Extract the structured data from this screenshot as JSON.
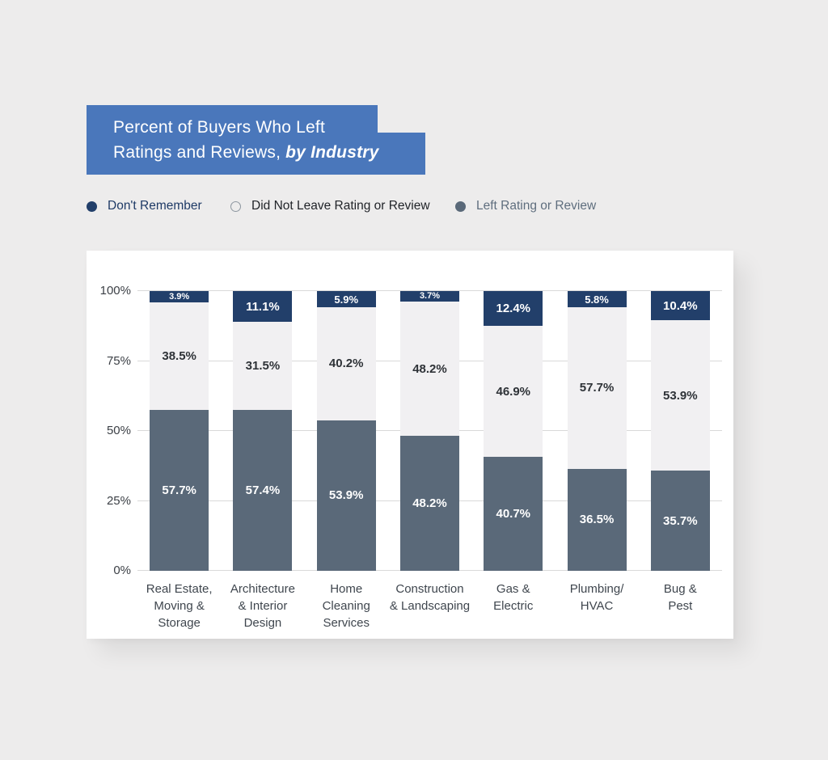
{
  "page": {
    "background": "#edecec",
    "card_background": "#ffffff"
  },
  "title_banner": {
    "line1": "Percent of Buyers Who Left",
    "line2_prefix": "Ratings and Reviews, ",
    "line2_emphasis": "by Industry",
    "background": "#4a77bb",
    "text_color": "#ffffff"
  },
  "legend": {
    "items": [
      {
        "label": "Don't Remember",
        "swatch": "filled",
        "color": "#223f6a",
        "text_color": "#1e3a66"
      },
      {
        "label": "Did Not Leave Rating or Review",
        "swatch": "hollow",
        "color": "#ffffff",
        "text_color": "#1f2227"
      },
      {
        "label": "Left Rating or Review",
        "swatch": "filled",
        "color": "#5a6979",
        "text_color": "#5f6e7e"
      }
    ]
  },
  "chart_data": {
    "type": "bar",
    "stacked": true,
    "title": "Percent of Buyers Who Left Ratings and Reviews, by Industry",
    "categories": [
      "Real Estate, Moving & Storage",
      "Architecture & Interior Design",
      "Home Cleaning Services",
      "Construction & Landscaping",
      "Gas & Electric",
      "Plumbing/HVAC",
      "Bug & Pest"
    ],
    "category_label_lines": [
      [
        "Real Estate,",
        "Moving &",
        "Storage"
      ],
      [
        "Architecture",
        "& Interior",
        "Design"
      ],
      [
        "Home",
        "Cleaning",
        "Services"
      ],
      [
        "Construction",
        "& Landscaping"
      ],
      [
        "Gas &",
        "Electric"
      ],
      [
        "Plumbing/",
        "HVAC"
      ],
      [
        "Bug &",
        "Pest"
      ]
    ],
    "series": [
      {
        "name": "Don't Remember",
        "color": "#223f6a",
        "label_color": "#ffffff",
        "values": [
          3.9,
          11.1,
          5.9,
          3.7,
          12.4,
          5.8,
          10.4
        ]
      },
      {
        "name": "Did Not Leave Rating or Review",
        "color": "#f1f0f2",
        "label_color": "#2e3237",
        "values": [
          38.5,
          31.5,
          40.2,
          48.2,
          46.9,
          57.7,
          53.9
        ]
      },
      {
        "name": "Left Rating or Review",
        "color": "#5a6979",
        "label_color": "#ffffff",
        "values": [
          57.7,
          57.4,
          53.9,
          48.2,
          40.7,
          36.5,
          35.7
        ]
      }
    ],
    "yticks": [
      "100%",
      "75%",
      "50%",
      "25%",
      "0%"
    ],
    "ytick_values": [
      100,
      75,
      50,
      25,
      0
    ],
    "ylim": [
      0,
      100
    ],
    "grid": true,
    "gridline_color": "#d9d9d9",
    "legend_position": "top",
    "value_suffix": "%"
  }
}
